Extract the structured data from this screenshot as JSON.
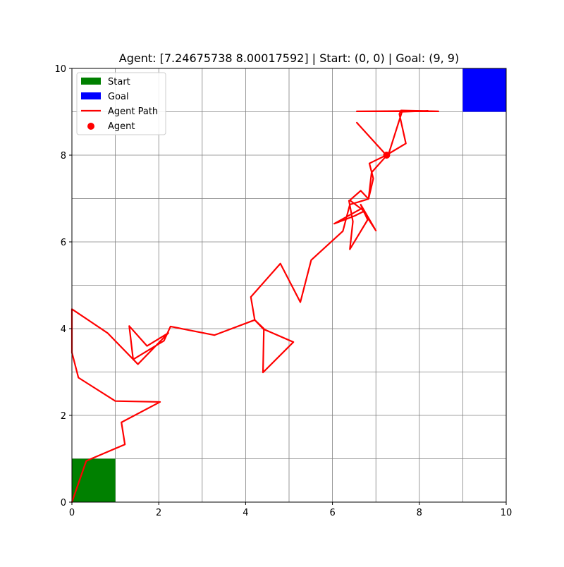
{
  "chart_data": {
    "type": "line",
    "title": "Agent: [7.24675738 8.00017592] | Start: (0, 0) | Goal: (9, 9)",
    "xlim": [
      0,
      10
    ],
    "ylim": [
      0,
      10
    ],
    "x_ticks": [
      0,
      2,
      4,
      6,
      8,
      10
    ],
    "y_ticks": [
      0,
      2,
      4,
      6,
      8,
      10
    ],
    "grid": true,
    "grid_step": 1,
    "legend_position": "top-left",
    "colors": {
      "start": "#008000",
      "goal": "#0000ff",
      "path": "#ff0000",
      "agent": "#ff0000",
      "grid": "#808080"
    },
    "legend": [
      {
        "label": "Start",
        "kind": "patch",
        "color": "#008000"
      },
      {
        "label": "Goal",
        "kind": "patch",
        "color": "#0000ff"
      },
      {
        "label": "Agent Path",
        "kind": "line",
        "color": "#ff0000"
      },
      {
        "label": "Agent",
        "kind": "marker",
        "color": "#ff0000"
      }
    ],
    "start_region": {
      "x": [
        0,
        1
      ],
      "y": [
        0,
        1
      ]
    },
    "goal_region": {
      "x": [
        9,
        10
      ],
      "y": [
        9,
        10
      ]
    },
    "agent_position": [
      7.24675738,
      8.00017592
    ],
    "path": [
      [
        0,
        0
      ],
      [
        0.33,
        0.95
      ],
      [
        1.22,
        1.33
      ],
      [
        1.14,
        1.84
      ],
      [
        2.03,
        2.31
      ],
      [
        1.0,
        2.33
      ],
      [
        0.15,
        2.87
      ],
      [
        0.0,
        3.45
      ],
      [
        0.0,
        3.95
      ],
      [
        0.0,
        4.45
      ],
      [
        0.82,
        3.9
      ],
      [
        1.52,
        3.18
      ],
      [
        2.22,
        3.9
      ],
      [
        1.73,
        3.6
      ],
      [
        1.32,
        4.06
      ],
      [
        1.41,
        3.29
      ],
      [
        2.12,
        3.72
      ],
      [
        2.27,
        4.05
      ],
      [
        3.28,
        3.85
      ],
      [
        4.21,
        4.2
      ],
      [
        4.41,
        3.99
      ],
      [
        5.1,
        3.69
      ],
      [
        4.4,
        2.99
      ],
      [
        4.42,
        4.0
      ],
      [
        4.21,
        4.2
      ],
      [
        4.12,
        4.73
      ],
      [
        4.8,
        5.5
      ],
      [
        5.26,
        4.61
      ],
      [
        5.51,
        5.58
      ],
      [
        6.24,
        6.25
      ],
      [
        6.4,
        6.86
      ],
      [
        6.83,
        6.99
      ],
      [
        6.94,
        7.46
      ],
      [
        6.85,
        7.81
      ],
      [
        7.24,
        8.0
      ],
      [
        6.56,
        8.75
      ],
      [
        7.24,
        8.0
      ],
      [
        7.69,
        8.27
      ],
      [
        7.54,
        8.95
      ],
      [
        7.58,
        9.03
      ],
      [
        8.44,
        9.01
      ],
      [
        6.56,
        9.01
      ],
      [
        8.2,
        9.02
      ],
      [
        7.6,
        9.0
      ],
      [
        7.3,
        8.05
      ],
      [
        6.9,
        7.6
      ],
      [
        6.83,
        6.99
      ],
      [
        6.65,
        7.18
      ],
      [
        6.4,
        6.96
      ],
      [
        6.73,
        6.71
      ],
      [
        6.51,
        6.6
      ],
      [
        6.04,
        6.42
      ],
      [
        6.67,
        6.77
      ],
      [
        7.0,
        6.26
      ],
      [
        6.65,
        6.86
      ],
      [
        6.81,
        6.51
      ],
      [
        6.4,
        5.83
      ],
      [
        6.47,
        6.47
      ],
      [
        6.38,
        6.95
      ]
    ]
  }
}
